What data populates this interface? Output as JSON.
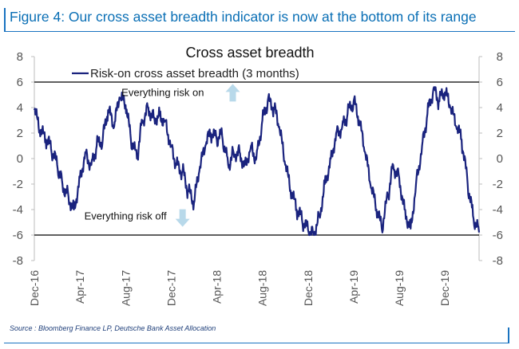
{
  "figure": {
    "title": "Figure 4: Our cross asset breadth indicator is now at the bottom of its range",
    "source": "Source : Bloomberg Finance LP, Deutsche Bank Asset Allocation"
  },
  "colors": {
    "series": "#1a237e",
    "arrow": "#b8d9ea",
    "accent": "#0a6fb5",
    "reference_line": "#000000",
    "axis": "#bdbdbd"
  },
  "chart_data": {
    "type": "line",
    "title": "Cross asset breadth",
    "legend_position": "top-left",
    "grid": false,
    "ylim": [
      -8,
      8
    ],
    "y_ticks": [
      8,
      6,
      4,
      2,
      0,
      -2,
      -4,
      -6,
      -8
    ],
    "y_tick_labels": [
      "8",
      "6",
      "4",
      "2",
      "0",
      "-2",
      "-4",
      "-6",
      "-8"
    ],
    "x_tick_labels": [
      "Dec-16",
      "Apr-17",
      "Aug-17",
      "Dec-17",
      "Apr-18",
      "Aug-18",
      "Dec-18",
      "Apr-19",
      "Aug-19",
      "Dec-19"
    ],
    "x_tick_dates": [
      "2016-12",
      "2017-04",
      "2017-08",
      "2017-12",
      "2018-04",
      "2018-08",
      "2018-12",
      "2019-04",
      "2019-08",
      "2019-12"
    ],
    "x_range": [
      "2016-12",
      "2020-03"
    ],
    "reference_lines": [
      6,
      -6
    ],
    "annotations": [
      {
        "text": "Everything risk on",
        "date": "2018-04",
        "y": 5.1,
        "arrow": "up"
      },
      {
        "text": "Everything risk off",
        "date": "2018-01",
        "y": -4.6,
        "arrow": "down"
      }
    ],
    "series": [
      {
        "name": "Risk-on cross asset breadth (3 months)",
        "points": [
          [
            "2016-12-01",
            3.8
          ],
          [
            "2016-12-15",
            2.2
          ],
          [
            "2017-01-01",
            1.5
          ],
          [
            "2017-01-15",
            0.8
          ],
          [
            "2017-02-01",
            -0.5
          ],
          [
            "2017-02-15",
            -2.0
          ],
          [
            "2017-03-01",
            -3.0
          ],
          [
            "2017-03-15",
            -4.0
          ],
          [
            "2017-04-01",
            -1.5
          ],
          [
            "2017-04-15",
            0.5
          ],
          [
            "2017-05-01",
            -0.5
          ],
          [
            "2017-05-15",
            1.0
          ],
          [
            "2017-06-01",
            1.5
          ],
          [
            "2017-06-15",
            3.8
          ],
          [
            "2017-07-01",
            2.5
          ],
          [
            "2017-07-15",
            4.8
          ],
          [
            "2017-08-01",
            4.2
          ],
          [
            "2017-08-15",
            1.5
          ],
          [
            "2017-09-01",
            0.0
          ],
          [
            "2017-09-15",
            3.0
          ],
          [
            "2017-10-01",
            4.0
          ],
          [
            "2017-10-15",
            3.2
          ],
          [
            "2017-11-01",
            3.4
          ],
          [
            "2017-11-15",
            3.0
          ],
          [
            "2017-12-01",
            1.0
          ],
          [
            "2017-12-15",
            -0.5
          ],
          [
            "2018-01-01",
            -1.0
          ],
          [
            "2018-01-15",
            -2.5
          ],
          [
            "2018-02-01",
            -3.5
          ],
          [
            "2018-02-15",
            -1.0
          ],
          [
            "2018-03-01",
            1.0
          ],
          [
            "2018-03-15",
            2.0
          ],
          [
            "2018-04-01",
            1.5
          ],
          [
            "2018-04-15",
            1.8
          ],
          [
            "2018-05-01",
            -0.5
          ],
          [
            "2018-05-15",
            0.5
          ],
          [
            "2018-06-01",
            0.5
          ],
          [
            "2018-06-15",
            -0.5
          ],
          [
            "2018-07-01",
            1.0
          ],
          [
            "2018-07-15",
            0.0
          ],
          [
            "2018-08-01",
            3.0
          ],
          [
            "2018-08-15",
            4.5
          ],
          [
            "2018-09-01",
            4.0
          ],
          [
            "2018-09-15",
            2.5
          ],
          [
            "2018-10-01",
            -0.5
          ],
          [
            "2018-10-15",
            -2.5
          ],
          [
            "2018-11-01",
            -4.0
          ],
          [
            "2018-11-15",
            -4.8
          ],
          [
            "2018-12-01",
            -5.6
          ],
          [
            "2018-12-15",
            -5.9
          ],
          [
            "2019-01-01",
            -4.5
          ],
          [
            "2019-01-15",
            -2.0
          ],
          [
            "2019-02-01",
            0.0
          ],
          [
            "2019-02-15",
            2.0
          ],
          [
            "2019-03-01",
            2.5
          ],
          [
            "2019-03-15",
            3.5
          ],
          [
            "2019-04-01",
            4.5
          ],
          [
            "2019-04-15",
            3.0
          ],
          [
            "2019-05-01",
            0.5
          ],
          [
            "2019-05-15",
            -2.0
          ],
          [
            "2019-06-01",
            -4.0
          ],
          [
            "2019-06-15",
            -5.5
          ],
          [
            "2019-07-01",
            -3.0
          ],
          [
            "2019-07-15",
            -0.5
          ],
          [
            "2019-08-01",
            -1.5
          ],
          [
            "2019-08-15",
            -4.0
          ],
          [
            "2019-09-01",
            -5.5
          ],
          [
            "2019-09-15",
            -2.0
          ],
          [
            "2019-10-01",
            1.0
          ],
          [
            "2019-10-15",
            3.5
          ],
          [
            "2019-11-01",
            5.5
          ],
          [
            "2019-11-15",
            4.5
          ],
          [
            "2019-12-01",
            5.2
          ],
          [
            "2019-12-15",
            4.0
          ],
          [
            "2020-01-01",
            2.5
          ],
          [
            "2020-01-15",
            1.5
          ],
          [
            "2020-02-01",
            -2.0
          ],
          [
            "2020-02-15",
            -4.5
          ],
          [
            "2020-03-01",
            -5.8
          ]
        ]
      }
    ]
  }
}
